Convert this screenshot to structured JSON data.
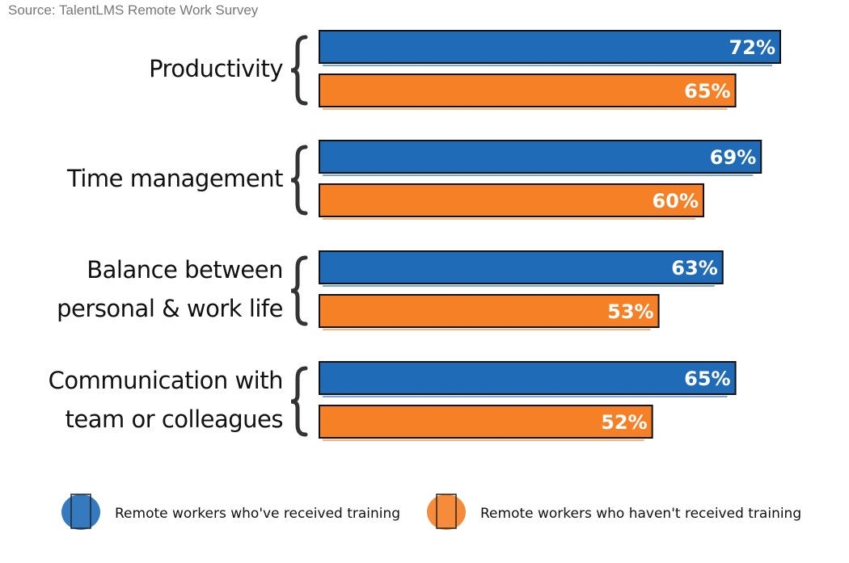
{
  "source": "Source: TalentLMS Remote Work Survey",
  "chart_data": {
    "type": "bar",
    "orientation": "horizontal",
    "categories": [
      [
        "Productivity"
      ],
      [
        "Time management"
      ],
      [
        "Balance between",
        "personal & work life"
      ],
      [
        "Communication with",
        "team or colleagues"
      ]
    ],
    "series": [
      {
        "name": "Remote workers who've received training",
        "color": "#1f6bb8",
        "values": [
          72,
          69,
          63,
          65
        ]
      },
      {
        "name": "Remote workers who haven't received training",
        "color": "#f58025",
        "values": [
          65,
          60,
          53,
          52
        ]
      }
    ],
    "value_suffix": "%",
    "xlim": [
      0,
      72
    ],
    "grid": false,
    "legend_position": "bottom"
  }
}
